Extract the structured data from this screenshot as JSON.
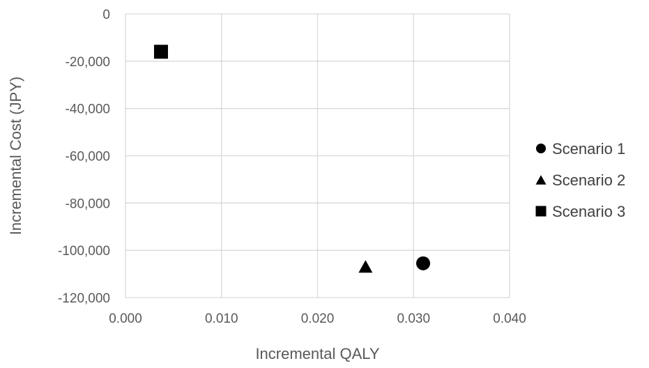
{
  "chart_data": {
    "type": "scatter",
    "title": "",
    "xlabel": "Incremental QALY",
    "ylabel": "Incremental Cost (JPY)",
    "xlim": [
      0.0,
      0.04
    ],
    "ylim": [
      -120000,
      0
    ],
    "x_ticks": [
      {
        "value": 0.0,
        "label": "0.000"
      },
      {
        "value": 0.01,
        "label": "0.010"
      },
      {
        "value": 0.02,
        "label": "0.020"
      },
      {
        "value": 0.03,
        "label": "0.030"
      },
      {
        "value": 0.04,
        "label": "0.040"
      }
    ],
    "y_ticks": [
      {
        "value": 0,
        "label": "0"
      },
      {
        "value": -20000,
        "label": "-20,000"
      },
      {
        "value": -40000,
        "label": "-40,000"
      },
      {
        "value": -60000,
        "label": "-60,000"
      },
      {
        "value": -80000,
        "label": "-80,000"
      },
      {
        "value": -100000,
        "label": "-100,000"
      },
      {
        "value": -120000,
        "label": "-120,000"
      }
    ],
    "grid": true,
    "legend_position": "right",
    "series": [
      {
        "name": "Scenario 1",
        "marker": "circle",
        "color": "#000000",
        "points": [
          {
            "x": 0.031,
            "y": -105500
          }
        ]
      },
      {
        "name": "Scenario 2",
        "marker": "triangle",
        "color": "#000000",
        "points": [
          {
            "x": 0.025,
            "y": -106800
          }
        ]
      },
      {
        "name": "Scenario 3",
        "marker": "square",
        "color": "#000000",
        "points": [
          {
            "x": 0.0037,
            "y": -16000
          }
        ]
      }
    ],
    "colors": {
      "grid": "#d9d9d9",
      "text": "#595959",
      "marker": "#000000"
    }
  }
}
